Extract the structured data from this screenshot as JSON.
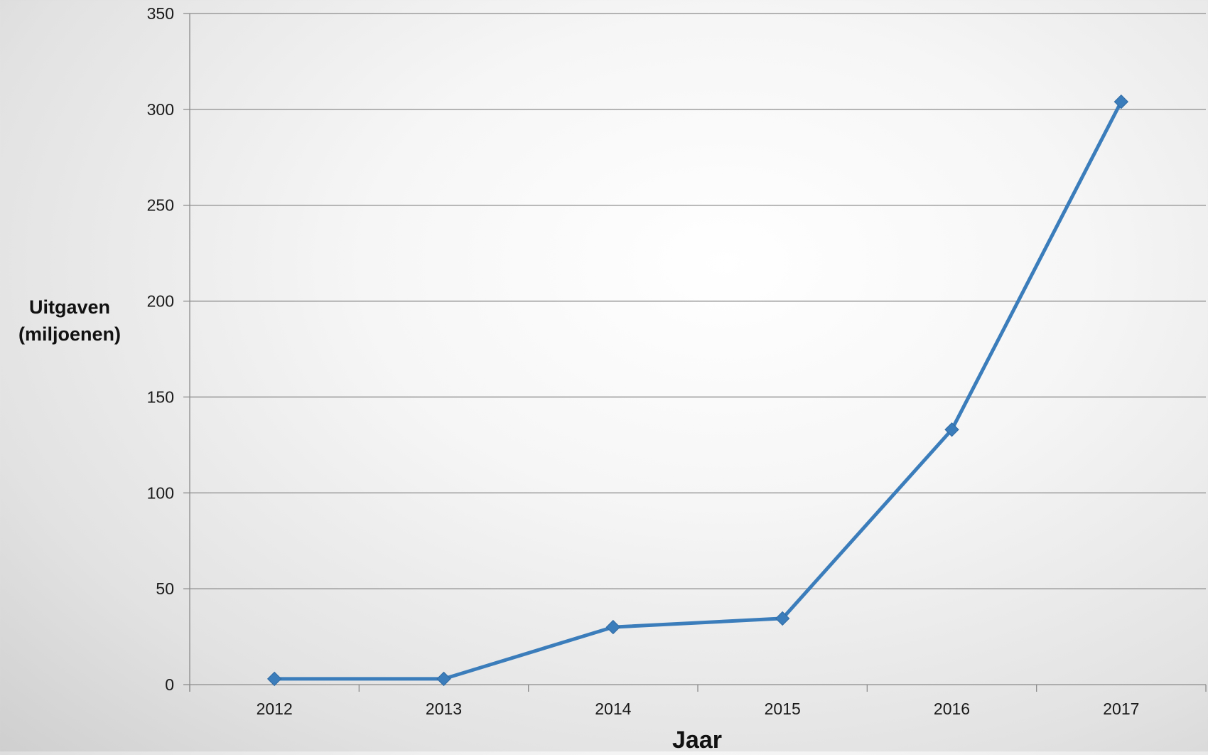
{
  "chart_data": {
    "type": "line",
    "title": "",
    "xlabel": "Jaar",
    "ylabel": [
      "Uitgaven",
      "(miljoenen)"
    ],
    "categories": [
      "2012",
      "2013",
      "2014",
      "2015",
      "2016",
      "2017"
    ],
    "series": [
      {
        "values": [
          3,
          3,
          30,
          34.5,
          133,
          304
        ],
        "color": "#3b7dbb",
        "marker": "diamond"
      }
    ],
    "ylim": [
      0,
      350
    ],
    "yticks": [
      0,
      50,
      100,
      150,
      200,
      250,
      300,
      350
    ],
    "grid": true,
    "legend": "none"
  }
}
